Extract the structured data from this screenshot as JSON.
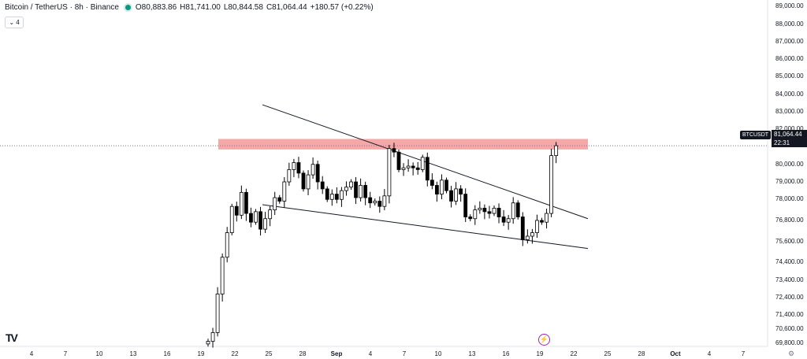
{
  "header": {
    "title": "Bitcoin / TetherUS · 8h · Binance",
    "open": "O80,883.86",
    "high": "H81,741.00",
    "low": "L80,844.58",
    "close": "C81,064.44",
    "change": "+180.57 (+0.22%)",
    "collapse_label": "⌄ 4"
  },
  "symbol_tag": "BTCUSDT",
  "last_price": {
    "value": "81,064.44",
    "countdown": "22:31"
  },
  "price_axis_labels": [
    "89,000.00",
    "88,000.00",
    "87,000.00",
    "86,000.00",
    "85,000.00",
    "84,000.00",
    "83,000.00",
    "82,000.00",
    "80,000.00",
    "79,000.00",
    "78,000.00",
    "76,800.00",
    "75,600.00",
    "74,400.00",
    "73,400.00",
    "72,400.00",
    "71,400.00",
    "70,600.00",
    "69,800.00"
  ],
  "time_axis_labels": [
    {
      "text": "4",
      "bold": false
    },
    {
      "text": "7",
      "bold": false
    },
    {
      "text": "10",
      "bold": false
    },
    {
      "text": "13",
      "bold": false
    },
    {
      "text": "16",
      "bold": false
    },
    {
      "text": "19",
      "bold": false
    },
    {
      "text": "22",
      "bold": false
    },
    {
      "text": "25",
      "bold": false
    },
    {
      "text": "28",
      "bold": false
    },
    {
      "text": "Sep",
      "bold": true
    },
    {
      "text": "4",
      "bold": false
    },
    {
      "text": "7",
      "bold": false
    },
    {
      "text": "10",
      "bold": false
    },
    {
      "text": "13",
      "bold": false
    },
    {
      "text": "16",
      "bold": false
    },
    {
      "text": "19",
      "bold": false
    },
    {
      "text": "22",
      "bold": false
    },
    {
      "text": "25",
      "bold": false
    },
    {
      "text": "28",
      "bold": false
    },
    {
      "text": "Oct",
      "bold": true
    },
    {
      "text": "4",
      "bold": false
    },
    {
      "text": "7",
      "bold": false
    }
  ],
  "chart_data": {
    "type": "candlestick",
    "interval": "8h",
    "y_axis": "right",
    "ylim": [
      69700,
      89200
    ],
    "bull_color": "#ffffff",
    "bear_color": "#000000",
    "resistance_zone": {
      "from": 80850,
      "to": 81450,
      "color": "#f28b8b"
    },
    "last_price_line": 81064.44,
    "candles_close": [
      69900,
      70400,
      72600,
      74700,
      76100,
      77600,
      77100,
      78400,
      77200,
      76700,
      77300,
      76300,
      76900,
      77400,
      78100,
      77900,
      79000,
      79700,
      80100,
      79500,
      78600,
      79400,
      80000,
      79000,
      78600,
      78000,
      78300,
      78000,
      78500,
      78700,
      79000,
      78100,
      78800,
      78100,
      77800,
      77900,
      77600,
      78200,
      80900,
      80700,
      79700,
      79800,
      79900,
      79800,
      79700,
      80400,
      79100,
      78800,
      78300,
      79100,
      78500,
      77900,
      78600,
      78300,
      77000,
      76900,
      77400,
      77500,
      77300,
      77200,
      77500,
      77000,
      76700,
      76900,
      77800,
      77000,
      75700,
      75900,
      76100,
      76800,
      76700,
      77200,
      80500,
      81064.44
    ],
    "trendlines": [
      {
        "name": "",
        "from": [
          "Aug 24",
          83400
        ],
        "to": [
          "Sep 22",
          76900
        ]
      },
      {
        "name": "",
        "from": [
          "Aug 24",
          77700
        ],
        "to": [
          "Sep 22",
          75200
        ]
      }
    ]
  }
}
